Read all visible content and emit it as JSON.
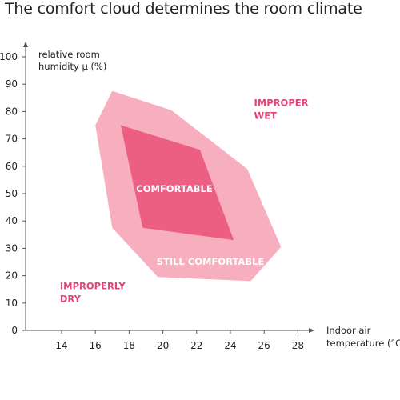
{
  "title": "The comfort cloud determines the room climate",
  "colors": {
    "outer_zone": "#f7afc0",
    "inner_zone": "#ec5f82",
    "zone_text_dark": "#e24473",
    "zone_text_light": "#ffffff",
    "axis": "#555555"
  },
  "chart_data": {
    "type": "area",
    "title": "The comfort cloud determines the room climate",
    "xlabel": [
      "Indoor air",
      "temperature (°C)"
    ],
    "ylabel": [
      "relative room",
      "humidity μ (%)"
    ],
    "x_unit": "°C",
    "y_unit": "%",
    "xlim": [
      12,
      29
    ],
    "ylim": [
      0,
      100
    ],
    "x_ticks": [
      14,
      16,
      18,
      20,
      22,
      24,
      26,
      28
    ],
    "y_ticks": [
      0,
      10,
      20,
      30,
      40,
      50,
      60,
      70,
      80,
      90,
      100
    ],
    "grid": false,
    "regions": [
      {
        "name": "still-comfortable",
        "label": "STILL COMFORTABLE",
        "points": [
          [
            17,
            87.5
          ],
          [
            20.5,
            80.5
          ],
          [
            25,
            59
          ],
          [
            27,
            30.5
          ],
          [
            25.2,
            18
          ],
          [
            19.7,
            19.5
          ],
          [
            17,
            37.5
          ],
          [
            16,
            75
          ]
        ]
      },
      {
        "name": "comfortable",
        "label": "COMFORTABLE",
        "points": [
          [
            17.5,
            75
          ],
          [
            22.2,
            66
          ],
          [
            24.2,
            33
          ],
          [
            18.8,
            37.5
          ]
        ]
      }
    ],
    "annotations": [
      {
        "name": "improper-wet",
        "lines": [
          "IMPROPER",
          "WET"
        ],
        "x": 25.4,
        "y": 82
      },
      {
        "name": "improperly-dry",
        "lines": [
          "IMPROPERLY",
          "DRY"
        ],
        "x": 13.9,
        "y": 15
      }
    ]
  }
}
